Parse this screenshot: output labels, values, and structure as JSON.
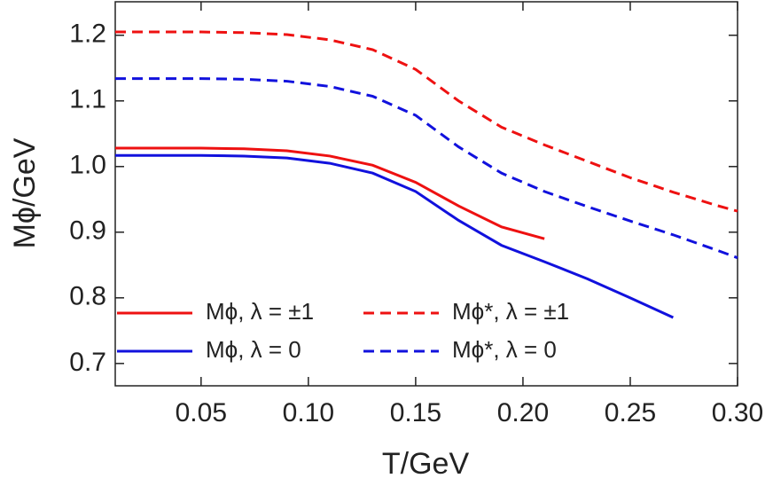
{
  "chart_data": {
    "type": "line",
    "x_label": "T/GeV",
    "y_label": "Mϕ/GeV",
    "x": [
      0.01,
      0.03,
      0.05,
      0.07,
      0.09,
      0.11,
      0.13,
      0.15,
      0.17,
      0.19,
      0.21,
      0.23,
      0.25,
      0.27,
      0.29,
      0.3
    ],
    "series": [
      {
        "name": "Mϕ, λ = ±1",
        "color": "#ee1111",
        "dash": false,
        "values": [
          1.028,
          1.028,
          1.028,
          1.027,
          1.024,
          1.016,
          1.002,
          0.976,
          0.94,
          0.908,
          0.89,
          null,
          null,
          null,
          null,
          null
        ]
      },
      {
        "name": "Mϕ, λ = 0",
        "color": "#1111dd",
        "dash": false,
        "values": [
          1.017,
          1.017,
          1.017,
          1.016,
          1.013,
          1.005,
          0.99,
          0.962,
          0.918,
          0.88,
          0.855,
          0.829,
          0.8,
          0.77,
          null,
          null
        ]
      },
      {
        "name": "Mϕ*, λ = ±1",
        "color": "#ee1111",
        "dash": true,
        "values": [
          1.205,
          1.205,
          1.205,
          1.204,
          1.201,
          1.193,
          1.178,
          1.148,
          1.1,
          1.06,
          1.033,
          1.008,
          0.983,
          0.961,
          0.941,
          0.932
        ]
      },
      {
        "name": "Mϕ*, λ = 0",
        "color": "#1111dd",
        "dash": true,
        "values": [
          1.134,
          1.134,
          1.134,
          1.133,
          1.13,
          1.122,
          1.107,
          1.078,
          1.03,
          0.99,
          0.962,
          0.939,
          0.917,
          0.896,
          0.873,
          0.861
        ]
      }
    ],
    "xlim": [
      0.01,
      0.3
    ],
    "xticks": [
      0.05,
      {
        "value": 0.1,
        "label": "0.10"
      },
      0.15,
      {
        "value": 0.2,
        "label": "0.20"
      },
      0.25,
      {
        "value": 0.3,
        "label": "0.30"
      }
    ],
    "ylim": [
      0.666,
      1.251
    ],
    "yticks": [
      0.7,
      0.8,
      0.9,
      {
        "value": 1.0,
        "label": "1.0"
      },
      1.1,
      1.2
    ]
  }
}
